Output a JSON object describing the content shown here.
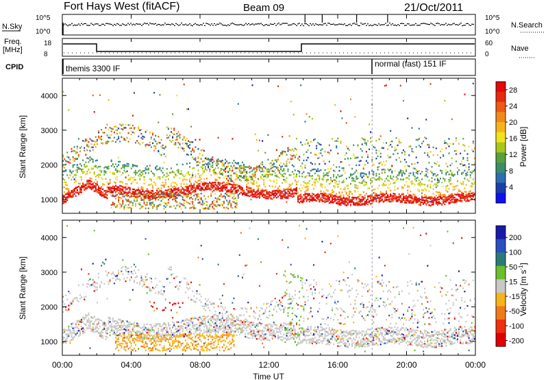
{
  "header": {
    "station": "Fort Hays West (fitACF)",
    "beam": "Beam 09",
    "date": "21/Oct/2011"
  },
  "top_panels": {
    "nsky_label": "N.Sky",
    "nsky_ticks": [
      "10^5",
      "10^0"
    ],
    "nsearch_label": "N.Search",
    "nsearch_ticks": [
      "10^5",
      "10^0"
    ],
    "freq_label": "Freq.",
    "freq_unit": "[MHz]",
    "freq_ticks": [
      "18",
      "8"
    ],
    "nave_label": "Nave",
    "nave_ticks": [
      "60",
      "0"
    ],
    "cpid_label": "CPID",
    "cpid_segments": [
      {
        "label": "themis 3300 IF",
        "start_hour": 0
      },
      {
        "label": "normal (fast) 151 IF",
        "start_hour": 18
      }
    ]
  },
  "chart_data": [
    {
      "type": "heatmap",
      "name": "power",
      "ylabel": "Slant Range [km]",
      "xlabel": "",
      "yticks": [
        "1000",
        "2000",
        "3000",
        "4000"
      ],
      "xlim": [
        0,
        24
      ],
      "ylim": [
        600,
        4500
      ],
      "colorbar": {
        "label": "Power [dB]",
        "ticks": [
          "4",
          "8",
          "12",
          "16",
          "20",
          "24",
          "28"
        ],
        "range": [
          0,
          30
        ],
        "colors": [
          "#1010ee",
          "#1a3fa8",
          "#2b6fb0",
          "#3c8c6c",
          "#5aa03a",
          "#a8c61e",
          "#f2e21c",
          "#f5b41a",
          "#f08a1a",
          "#ee5a14",
          "#e62a10",
          "#e00a0a"
        ]
      },
      "features": [
        {
          "desc_hours": [
            0,
            13.6
          ],
          "range_km": [
            900,
            1500
          ]
        },
        {
          "desc_hours": [
            2.8,
            10
          ],
          "range_km": [
            700,
            1200
          ]
        },
        {
          "desc_hours": [
            13.6,
            24
          ],
          "range_km": [
            950,
            1300
          ]
        }
      ]
    },
    {
      "type": "heatmap",
      "name": "velocity",
      "ylabel": "Slant Range [km]",
      "xlabel": "Time UT",
      "yticks": [
        "1000",
        "2000",
        "3000",
        "4000"
      ],
      "xticks": [
        "00:00",
        "04:00",
        "08:00",
        "12:00",
        "16:00",
        "20:00",
        "00:00"
      ],
      "xlim": [
        0,
        24
      ],
      "ylim": [
        600,
        4500
      ],
      "colorbar": {
        "label": "Velocity [m s",
        "label_sup": "-1",
        "label_end": "]",
        "ticks": [
          "200",
          "100",
          "50",
          "15",
          "-15",
          "-50",
          "-100",
          "-200"
        ],
        "colors": [
          "#1a1aa8",
          "#2a4fc0",
          "#2b7a7a",
          "#6abf2a",
          "#c8c8c8",
          "#f5b41a",
          "#f07a1a",
          "#ee3010",
          "#e00000"
        ]
      }
    }
  ]
}
